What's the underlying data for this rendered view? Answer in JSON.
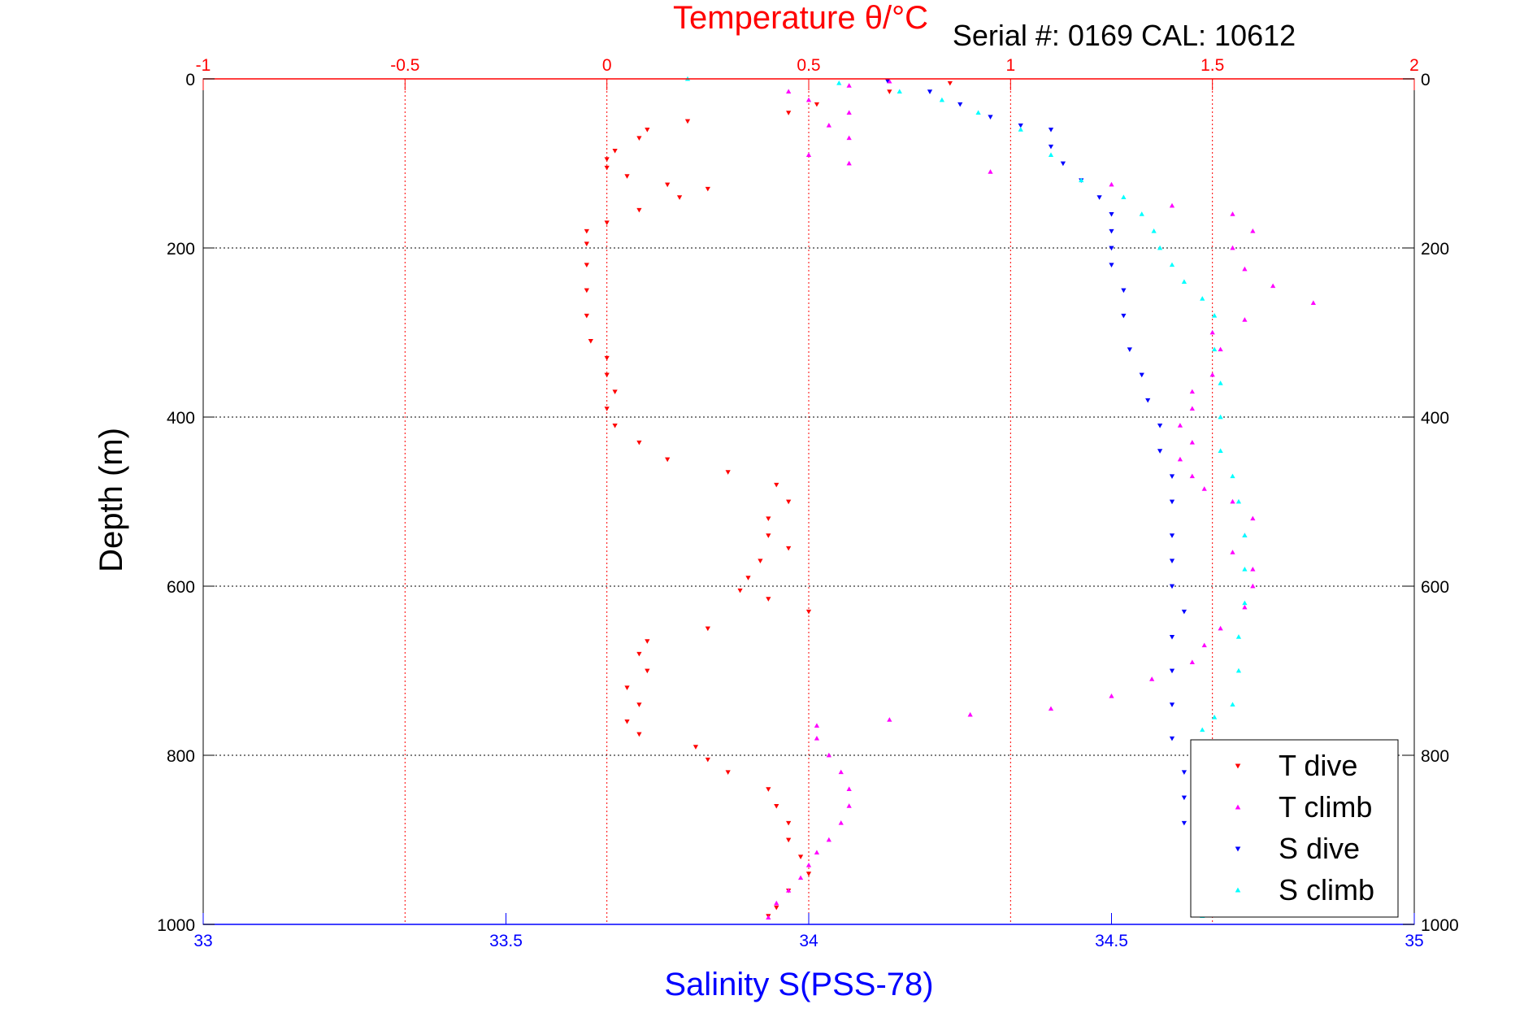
{
  "chart_data": {
    "type": "scatter",
    "title": "Temperature θ/°C",
    "subtitle": "Serial #: 0169 CAL: 10612",
    "top_axis": {
      "label": "Temperature θ/°C",
      "range": [
        -1,
        2
      ],
      "ticks": [
        "-1",
        "-0.5",
        "0",
        "0.5",
        "1",
        "1.5",
        "2"
      ],
      "color": "#ff0000"
    },
    "bottom_axis": {
      "label": "Salinity S(PSS-78)",
      "range": [
        33,
        35
      ],
      "ticks": [
        "33",
        "33.5",
        "34",
        "34.5",
        "35"
      ],
      "color": "#0000ff"
    },
    "y_axis": {
      "label": "Depth (m)",
      "range": [
        0,
        1000
      ],
      "inverted": true,
      "ticks": [
        "0",
        "200",
        "400",
        "600",
        "800",
        "1000"
      ]
    },
    "grid": true,
    "legend": {
      "placement": "bottom-right"
    },
    "series": [
      {
        "name": "T dive",
        "axis": "temperature",
        "color": "#ff0000",
        "marker": "triangle-down",
        "points": [
          [
            0.85,
            5
          ],
          [
            0.7,
            15
          ],
          [
            0.52,
            30
          ],
          [
            0.45,
            40
          ],
          [
            0.2,
            50
          ],
          [
            0.1,
            60
          ],
          [
            0.08,
            70
          ],
          [
            0.02,
            85
          ],
          [
            0.0,
            95
          ],
          [
            0.0,
            105
          ],
          [
            0.05,
            115
          ],
          [
            0.15,
            125
          ],
          [
            0.25,
            130
          ],
          [
            0.18,
            140
          ],
          [
            0.08,
            155
          ],
          [
            0.0,
            170
          ],
          [
            -0.05,
            180
          ],
          [
            -0.05,
            195
          ],
          [
            -0.05,
            220
          ],
          [
            -0.05,
            250
          ],
          [
            -0.05,
            280
          ],
          [
            -0.04,
            310
          ],
          [
            0.0,
            330
          ],
          [
            0.0,
            350
          ],
          [
            0.02,
            370
          ],
          [
            0.0,
            390
          ],
          [
            0.02,
            410
          ],
          [
            0.08,
            430
          ],
          [
            0.15,
            450
          ],
          [
            0.3,
            465
          ],
          [
            0.42,
            480
          ],
          [
            0.45,
            500
          ],
          [
            0.4,
            520
          ],
          [
            0.4,
            540
          ],
          [
            0.45,
            555
          ],
          [
            0.38,
            570
          ],
          [
            0.35,
            590
          ],
          [
            0.33,
            605
          ],
          [
            0.4,
            615
          ],
          [
            0.5,
            630
          ],
          [
            0.25,
            650
          ],
          [
            0.1,
            665
          ],
          [
            0.08,
            680
          ],
          [
            0.1,
            700
          ],
          [
            0.05,
            720
          ],
          [
            0.08,
            740
          ],
          [
            0.05,
            760
          ],
          [
            0.08,
            775
          ],
          [
            0.22,
            790
          ],
          [
            0.25,
            805
          ],
          [
            0.3,
            820
          ],
          [
            0.4,
            840
          ],
          [
            0.42,
            860
          ],
          [
            0.45,
            880
          ],
          [
            0.45,
            900
          ],
          [
            0.48,
            920
          ],
          [
            0.5,
            940
          ],
          [
            0.45,
            960
          ],
          [
            0.42,
            980
          ],
          [
            0.4,
            990
          ]
        ]
      },
      {
        "name": "T climb",
        "axis": "temperature",
        "color": "#ff00ff",
        "marker": "triangle-up",
        "points": [
          [
            0.4,
            992
          ],
          [
            0.42,
            975
          ],
          [
            0.45,
            960
          ],
          [
            0.48,
            945
          ],
          [
            0.5,
            930
          ],
          [
            0.52,
            915
          ],
          [
            0.55,
            900
          ],
          [
            0.58,
            880
          ],
          [
            0.6,
            860
          ],
          [
            0.6,
            840
          ],
          [
            0.58,
            820
          ],
          [
            0.55,
            800
          ],
          [
            0.52,
            780
          ],
          [
            0.52,
            765
          ],
          [
            0.7,
            758
          ],
          [
            0.9,
            752
          ],
          [
            1.1,
            745
          ],
          [
            1.25,
            730
          ],
          [
            1.35,
            710
          ],
          [
            1.45,
            690
          ],
          [
            1.48,
            670
          ],
          [
            1.52,
            650
          ],
          [
            1.58,
            625
          ],
          [
            1.6,
            600
          ],
          [
            1.6,
            580
          ],
          [
            1.55,
            560
          ],
          [
            1.58,
            540
          ],
          [
            1.6,
            520
          ],
          [
            1.55,
            500
          ],
          [
            1.48,
            485
          ],
          [
            1.45,
            470
          ],
          [
            1.42,
            450
          ],
          [
            1.45,
            430
          ],
          [
            1.42,
            410
          ],
          [
            1.45,
            390
          ],
          [
            1.45,
            370
          ],
          [
            1.5,
            350
          ],
          [
            1.52,
            320
          ],
          [
            1.5,
            300
          ],
          [
            1.58,
            285
          ],
          [
            1.75,
            265
          ],
          [
            1.65,
            245
          ],
          [
            1.58,
            225
          ],
          [
            1.55,
            200
          ],
          [
            1.6,
            180
          ],
          [
            1.55,
            160
          ],
          [
            1.4,
            150
          ],
          [
            1.25,
            125
          ],
          [
            0.95,
            110
          ],
          [
            0.6,
            100
          ],
          [
            0.5,
            90
          ],
          [
            0.6,
            70
          ],
          [
            0.55,
            55
          ],
          [
            0.6,
            40
          ],
          [
            0.5,
            25
          ],
          [
            0.45,
            15
          ],
          [
            0.6,
            8
          ],
          [
            0.7,
            3
          ]
        ]
      },
      {
        "name": "S dive",
        "axis": "salinity",
        "color": "#0000ff",
        "marker": "triangle-down",
        "points": [
          [
            34.13,
            2
          ],
          [
            34.2,
            15
          ],
          [
            34.25,
            30
          ],
          [
            34.3,
            45
          ],
          [
            34.35,
            55
          ],
          [
            34.4,
            60
          ],
          [
            34.4,
            80
          ],
          [
            34.42,
            100
          ],
          [
            34.45,
            120
          ],
          [
            34.48,
            140
          ],
          [
            34.5,
            160
          ],
          [
            34.5,
            180
          ],
          [
            34.5,
            200
          ],
          [
            34.5,
            220
          ],
          [
            34.52,
            250
          ],
          [
            34.52,
            280
          ],
          [
            34.53,
            320
          ],
          [
            34.55,
            350
          ],
          [
            34.56,
            380
          ],
          [
            34.58,
            410
          ],
          [
            34.58,
            440
          ],
          [
            34.6,
            470
          ],
          [
            34.6,
            500
          ],
          [
            34.6,
            540
          ],
          [
            34.6,
            570
          ],
          [
            34.6,
            600
          ],
          [
            34.62,
            630
          ],
          [
            34.6,
            660
          ],
          [
            34.6,
            700
          ],
          [
            34.6,
            740
          ],
          [
            34.6,
            780
          ],
          [
            34.62,
            820
          ],
          [
            34.62,
            850
          ],
          [
            34.62,
            880
          ]
        ]
      },
      {
        "name": "S climb",
        "axis": "salinity",
        "color": "#00ffff",
        "marker": "triangle-up",
        "points": [
          [
            34.65,
            990
          ],
          [
            34.65,
            960
          ],
          [
            34.66,
            920
          ],
          [
            34.65,
            880
          ],
          [
            34.64,
            840
          ],
          [
            34.64,
            800
          ],
          [
            34.65,
            770
          ],
          [
            34.67,
            755
          ],
          [
            34.7,
            740
          ],
          [
            34.71,
            700
          ],
          [
            34.71,
            660
          ],
          [
            34.72,
            620
          ],
          [
            34.72,
            580
          ],
          [
            34.72,
            540
          ],
          [
            34.71,
            500
          ],
          [
            34.7,
            470
          ],
          [
            34.68,
            440
          ],
          [
            34.68,
            400
          ],
          [
            34.68,
            360
          ],
          [
            34.67,
            320
          ],
          [
            34.67,
            280
          ],
          [
            34.65,
            260
          ],
          [
            34.62,
            240
          ],
          [
            34.6,
            220
          ],
          [
            34.58,
            200
          ],
          [
            34.57,
            180
          ],
          [
            34.55,
            160
          ],
          [
            34.52,
            140
          ],
          [
            34.45,
            120
          ],
          [
            34.4,
            90
          ],
          [
            34.35,
            60
          ],
          [
            34.28,
            40
          ],
          [
            34.22,
            25
          ],
          [
            34.15,
            15
          ],
          [
            34.05,
            5
          ],
          [
            33.8,
            0
          ]
        ]
      }
    ]
  }
}
